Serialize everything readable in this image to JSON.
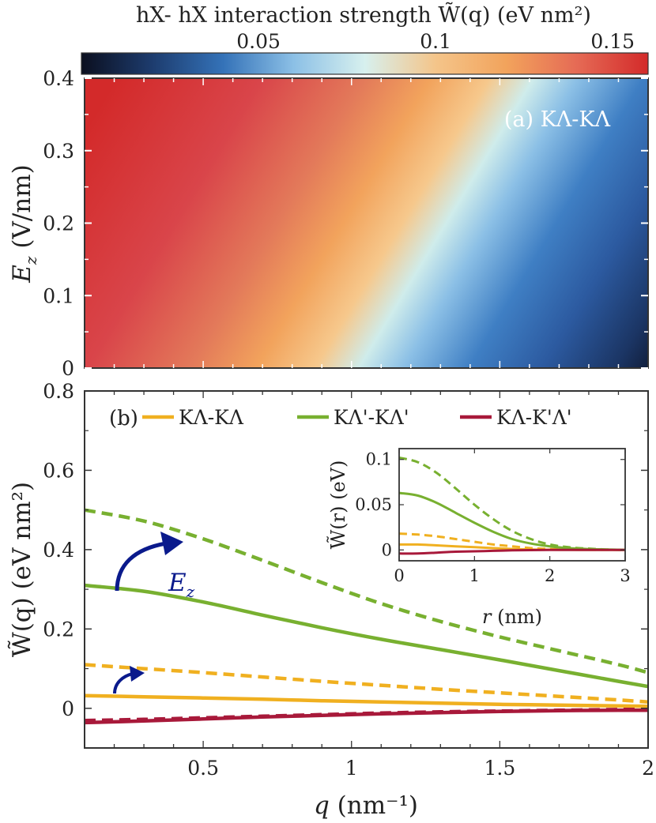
{
  "colorbar": {
    "title": "hX- hX interaction strength W̃(q) (eV nm²)",
    "ticks": [
      {
        "label": "0.05",
        "value": 0.05
      },
      {
        "label": "0.1",
        "value": 0.1
      },
      {
        "label": "0.15",
        "value": 0.15
      }
    ],
    "range": [
      0,
      0.16
    ],
    "colors": [
      "#0b0f1f",
      "#1d3c6e",
      "#3472b8",
      "#8cc0e6",
      "#d7f0ee",
      "#f4c58a",
      "#f2a35c",
      "#e56a55",
      "#d32a2a"
    ]
  },
  "panel_a": {
    "label": "(a) KΛ-KΛ",
    "ylabel_var": "E",
    "ylabel_sub": "z",
    "ylabel_unit": " (V/nm)",
    "yticks": [
      {
        "label": "0",
        "value": 0
      },
      {
        "label": "0.1",
        "value": 0.1
      },
      {
        "label": "0.2",
        "value": 0.2
      },
      {
        "label": "0.3",
        "value": 0.3
      },
      {
        "label": "0.4",
        "value": 0.4
      }
    ],
    "xlim": [
      0.1,
      2
    ],
    "ylim": [
      0,
      0.4
    ]
  },
  "chart_data": [
    {
      "type": "heatmap",
      "title": "(a) KΛ-KΛ",
      "xlabel": "q (nm⁻¹)",
      "ylabel": "E_z (V/nm)",
      "xlim": [
        0.1,
        2
      ],
      "ylim": [
        0,
        0.4
      ],
      "colorbar_range": [
        0,
        0.16
      ],
      "description_value": "W(q) highest (~0.16) at small q, high E_z; lowest (~0) at large q, low E_z"
    },
    {
      "type": "line",
      "title": "(b)",
      "xlabel": "q (nm⁻¹)",
      "ylabel": "W̃(q) (eV nm²)",
      "xlim": [
        0.1,
        2
      ],
      "ylim": [
        -0.1,
        0.8
      ],
      "x": [
        0.1,
        0.3,
        0.5,
        0.7,
        0.9,
        1.1,
        1.3,
        1.5,
        1.7,
        1.9,
        2.0
      ],
      "series": [
        {
          "name": "KΛ-KΛ",
          "style": "solid",
          "color": "#f0b020",
          "values": [
            0.032,
            0.029,
            0.026,
            0.023,
            0.019,
            0.016,
            0.013,
            0.01,
            0.008,
            0.006,
            0.005
          ]
        },
        {
          "name": "KΛ-KΛ (E_z)",
          "style": "dashed",
          "color": "#f0b020",
          "values": [
            0.11,
            0.1,
            0.09,
            0.079,
            0.068,
            0.058,
            0.048,
            0.039,
            0.03,
            0.021,
            0.016
          ]
        },
        {
          "name": "KΛ'-KΛ'",
          "style": "solid",
          "color": "#78b030",
          "values": [
            0.31,
            0.295,
            0.268,
            0.235,
            0.203,
            0.174,
            0.148,
            0.122,
            0.095,
            0.068,
            0.055
          ]
        },
        {
          "name": "KΛ'-KΛ' (E_z)",
          "style": "dashed",
          "color": "#78b030",
          "values": [
            0.5,
            0.472,
            0.427,
            0.373,
            0.317,
            0.264,
            0.219,
            0.18,
            0.145,
            0.11,
            0.09
          ]
        },
        {
          "name": "KΛ-K'Λ'",
          "style": "solid",
          "color": "#a8193a",
          "values": [
            -0.036,
            -0.032,
            -0.027,
            -0.022,
            -0.018,
            -0.014,
            -0.011,
            -0.008,
            -0.006,
            -0.005,
            -0.005
          ]
        },
        {
          "name": "KΛ-K'Λ' (E_z)",
          "style": "dashed",
          "color": "#a8193a",
          "values": [
            -0.031,
            -0.028,
            -0.024,
            -0.02,
            -0.016,
            -0.012,
            -0.009,
            -0.007,
            -0.005,
            -0.003,
            -0.003
          ]
        }
      ]
    },
    {
      "type": "line",
      "title": "inset",
      "xlabel": "r (nm)",
      "ylabel": "W̃(r) (eV)",
      "xlim": [
        0,
        3
      ],
      "ylim": [
        -0.012,
        0.112
      ],
      "x": [
        0,
        0.25,
        0.5,
        0.75,
        1.0,
        1.25,
        1.5,
        1.75,
        2.0,
        2.25,
        2.5,
        2.75,
        3.0
      ],
      "series": [
        {
          "name": "KΛ-KΛ",
          "style": "solid",
          "color": "#f0b020",
          "values": [
            0.006,
            0.006,
            0.005,
            0.004,
            0.003,
            0.002,
            0.001,
            0.0005,
            0.0002,
            0.0001,
            0,
            0,
            0
          ]
        },
        {
          "name": "KΛ-KΛ (E_z)",
          "style": "dashed",
          "color": "#f0b020",
          "values": [
            0.018,
            0.017,
            0.015,
            0.012,
            0.009,
            0.006,
            0.004,
            0.002,
            0.001,
            0.0005,
            0.0002,
            0.0001,
            0
          ]
        },
        {
          "name": "KΛ'-KΛ'",
          "style": "solid",
          "color": "#78b030",
          "values": [
            0.063,
            0.06,
            0.052,
            0.041,
            0.03,
            0.02,
            0.012,
            0.007,
            0.004,
            0.002,
            0.001,
            0.0005,
            0
          ]
        },
        {
          "name": "KΛ'-KΛ' (E_z)",
          "style": "dashed",
          "color": "#78b030",
          "values": [
            0.102,
            0.097,
            0.085,
            0.068,
            0.05,
            0.034,
            0.021,
            0.012,
            0.006,
            0.003,
            0.0015,
            0.0005,
            0
          ]
        },
        {
          "name": "KΛ-K'Λ'",
          "style": "solid",
          "color": "#a8193a",
          "values": [
            -0.004,
            -0.004,
            -0.003,
            -0.002,
            -0.0015,
            -0.001,
            -0.0005,
            -0.0002,
            0,
            0,
            0,
            0,
            0
          ]
        }
      ]
    }
  ],
  "panel_b": {
    "label": "(b)",
    "ylabel": "W̃(q) (eV nm²)",
    "xlabel_var": "q",
    "xlabel_unit": " (nm⁻¹)",
    "xticks": [
      {
        "label": "0.5",
        "value": 0.5
      },
      {
        "label": "1",
        "value": 1
      },
      {
        "label": "1.5",
        "value": 1.5
      },
      {
        "label": "2",
        "value": 2
      }
    ],
    "yticks": [
      {
        "label": "0",
        "value": 0
      },
      {
        "label": "0.2",
        "value": 0.2
      },
      {
        "label": "0.4",
        "value": 0.4
      },
      {
        "label": "0.6",
        "value": 0.6
      },
      {
        "label": "0.8",
        "value": 0.8
      }
    ],
    "legend": [
      {
        "label": "KΛ-KΛ",
        "color": "#f0b020"
      },
      {
        "label": "KΛ'-KΛ'",
        "color": "#78b030"
      },
      {
        "label": "KΛ-K'Λ'",
        "color": "#a8193a"
      }
    ],
    "arrow_label_var": "E",
    "arrow_label_sub": "z",
    "arrow_color": "#0a1a8c"
  },
  "inset": {
    "ylabel": "W̃(r) (eV)",
    "xlabel_var": "r",
    "xlabel_unit": " (nm)",
    "xticks": [
      {
        "label": "0",
        "value": 0
      },
      {
        "label": "1",
        "value": 1
      },
      {
        "label": "2",
        "value": 2
      },
      {
        "label": "3",
        "value": 3
      }
    ],
    "yticks": [
      {
        "label": "0",
        "value": 0
      },
      {
        "label": "0.05",
        "value": 0.05
      },
      {
        "label": "0.1",
        "value": 0.1
      }
    ]
  }
}
